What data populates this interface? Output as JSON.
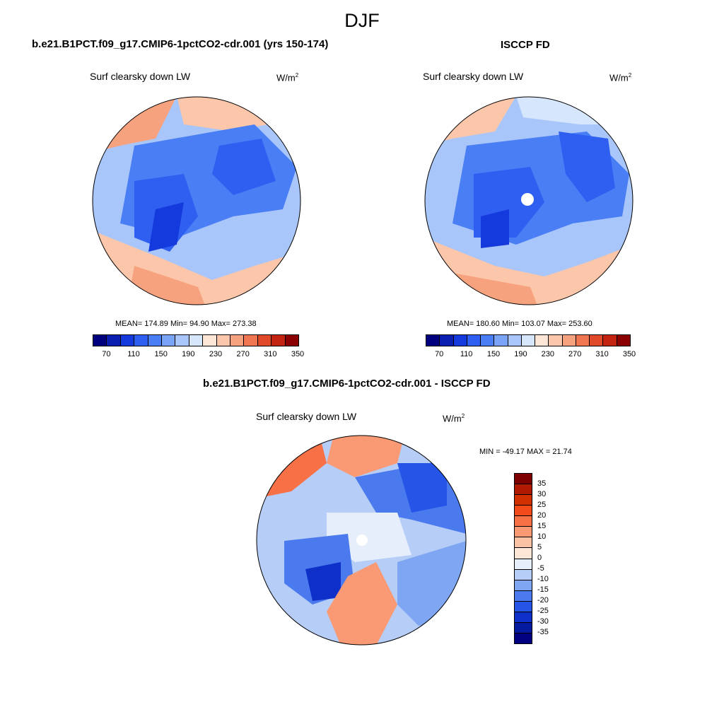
{
  "season": "DJF",
  "panels": [
    {
      "title": "b.e21.B1PCT.f09_g17.CMIP6-1pctCO2-cdr.001 (yrs 150-174)",
      "variable": "Surf clearsky down LW",
      "units": "W/m",
      "units_exp": "2",
      "stats": "MEAN= 174.89  Min=  94.90  Max= 273.38"
    },
    {
      "title": "ISCCP FD",
      "variable": "Surf clearsky down LW",
      "units": "W/m",
      "units_exp": "2",
      "stats": "MEAN= 180.60  Min= 103.07  Max= 253.60"
    },
    {
      "title": "b.e21.B1PCT.f09_g17.CMIP6-1pctCO2-cdr.001 - ISCCP FD",
      "variable": "Surf clearsky down LW",
      "units": "W/m",
      "units_exp": "2",
      "stats": "MIN = -49.17 MAX =  21.74"
    }
  ],
  "abs_colorbar": {
    "labels": [
      "70",
      "110",
      "150",
      "190",
      "230",
      "270",
      "310",
      "350"
    ],
    "colors": [
      "#00007f",
      "#0a1fb0",
      "#1439dc",
      "#2f5ff0",
      "#4a7ef5",
      "#7aa4f7",
      "#a9c6fa",
      "#d6e6fc",
      "#fde6d6",
      "#fbc6aa",
      "#f7a27e",
      "#f07651",
      "#e1492b",
      "#c22411",
      "#8b0000"
    ]
  },
  "diff_colorbar": {
    "labels": [
      "35",
      "30",
      "25",
      "20",
      "15",
      "10",
      "5",
      "0",
      "-5",
      "-10",
      "-15",
      "-20",
      "-25",
      "-30",
      "-35"
    ],
    "colors": [
      "#7f0000",
      "#b01a00",
      "#d23000",
      "#f24a18",
      "#f77046",
      "#f99a74",
      "#fbc3a4",
      "#fde6d6",
      "#e6eefb",
      "#b5cdf7",
      "#7fa6f2",
      "#4a7aee",
      "#2554e6",
      "#0e30c8",
      "#061aa0",
      "#000080"
    ]
  }
}
